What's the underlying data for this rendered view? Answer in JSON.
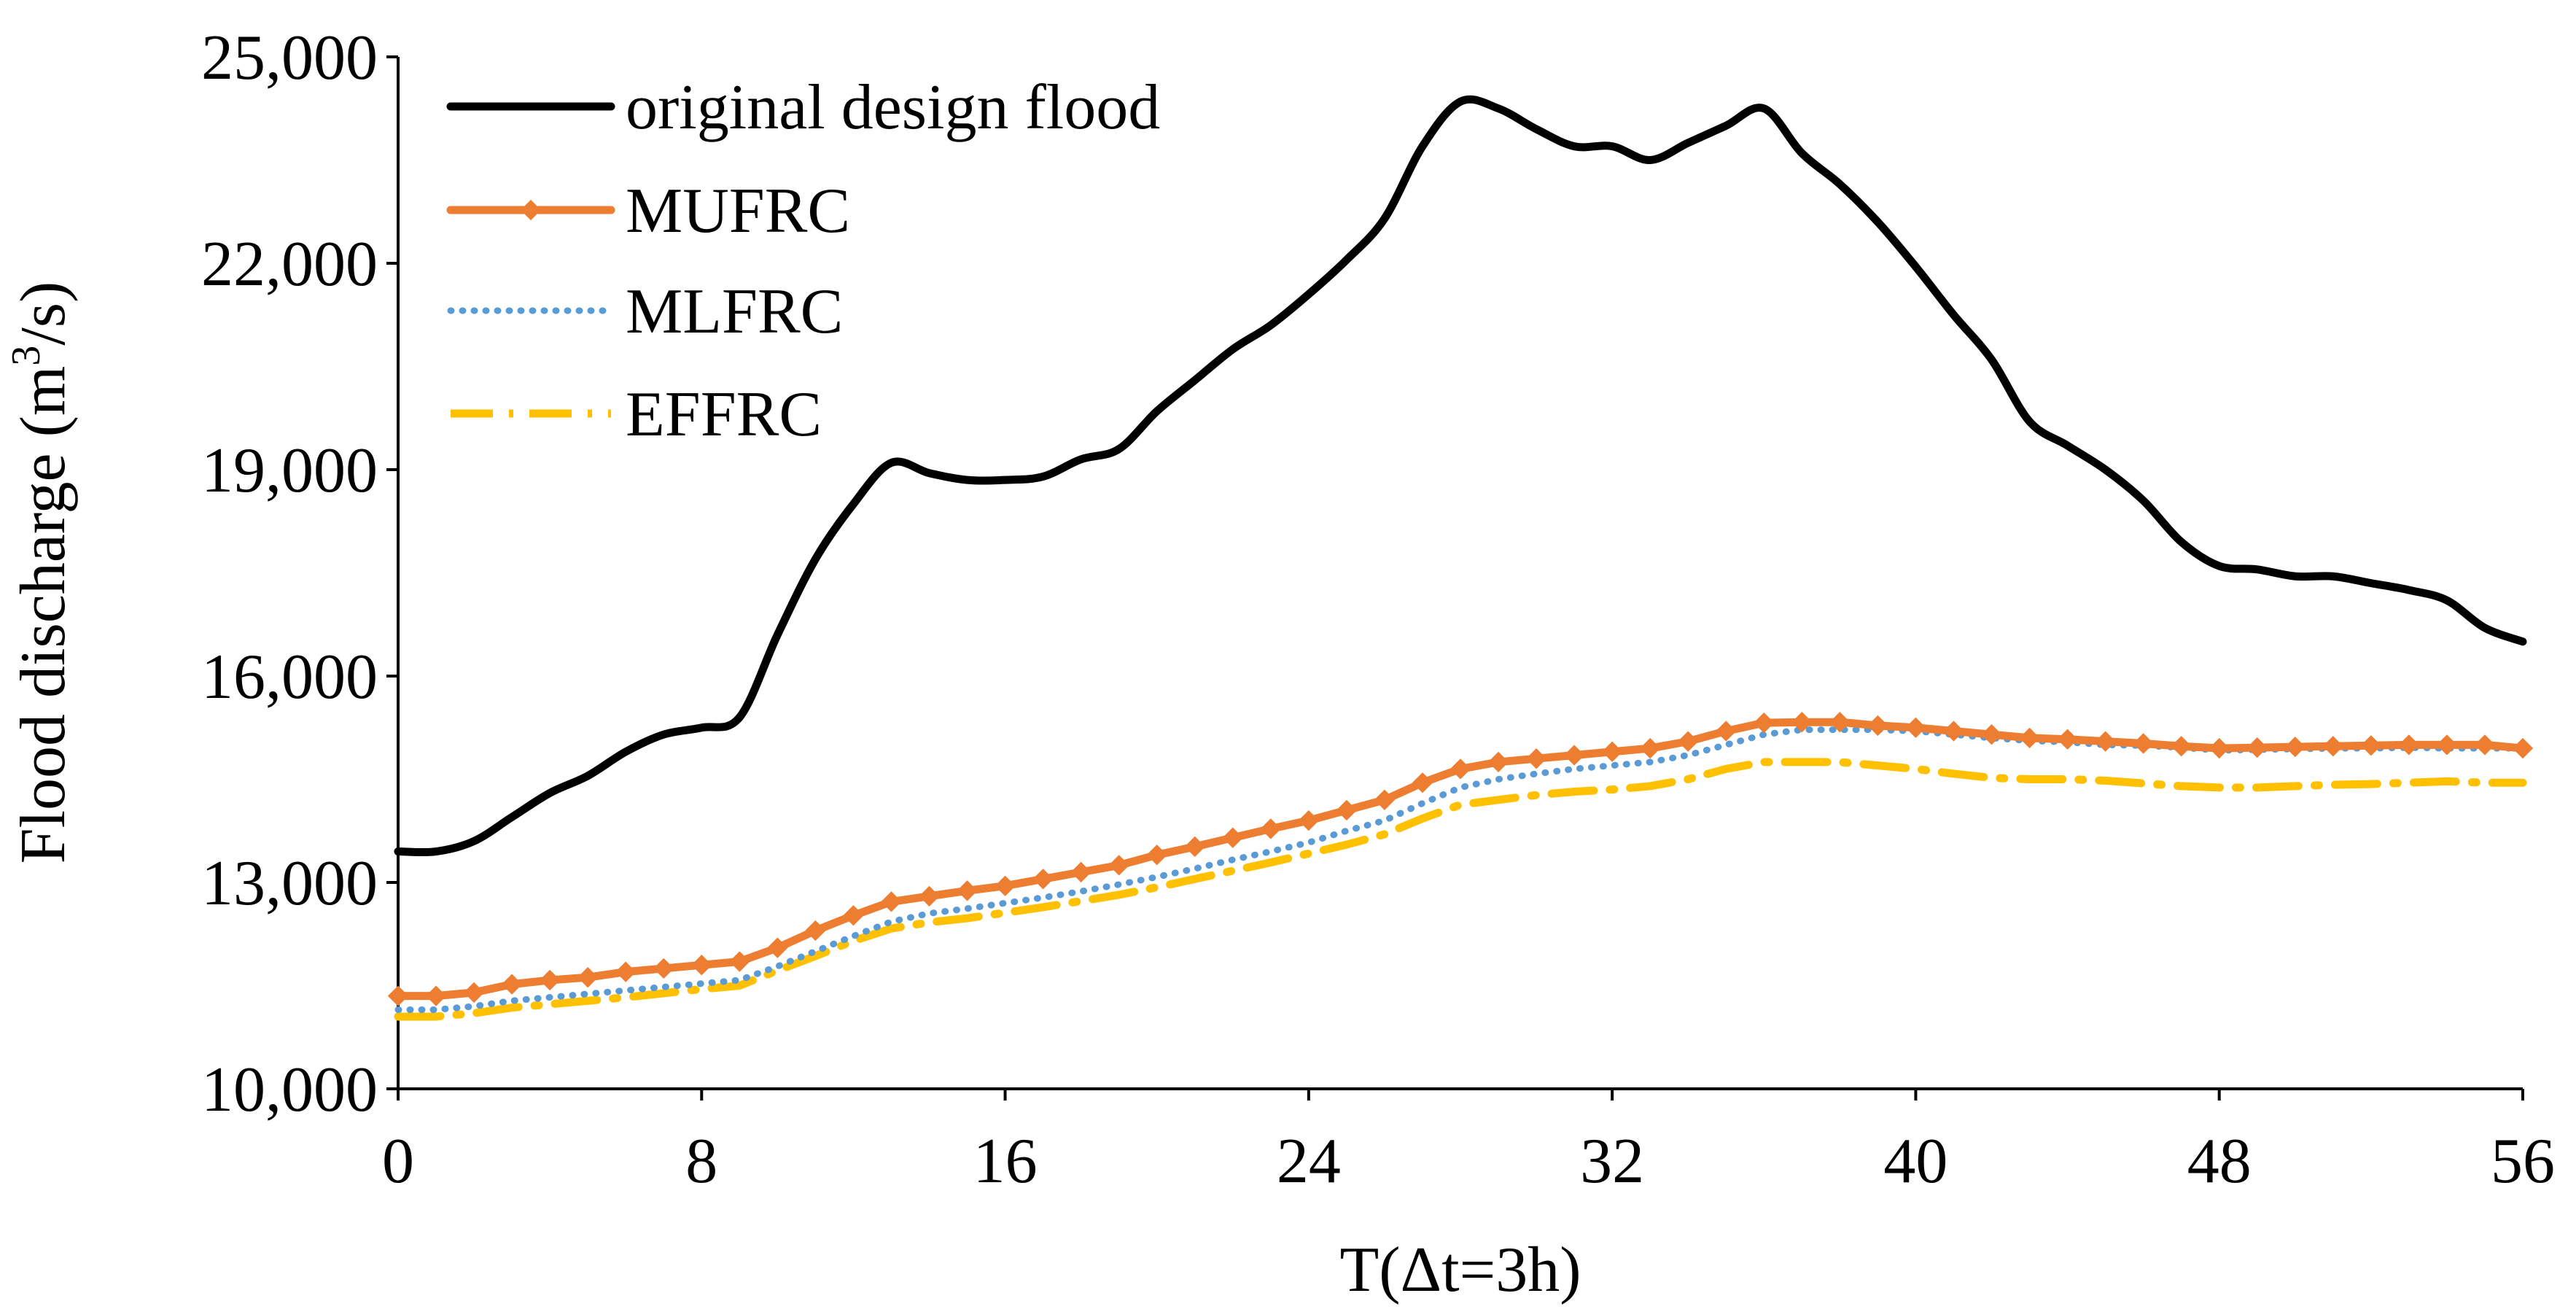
{
  "chart_data": {
    "type": "line",
    "title": "",
    "xlabel": "T(Δt=3h)",
    "ylabel_prefix": "Flood discharge (m",
    "ylabel_sup": "3",
    "ylabel_suffix": "/s)",
    "xlim": [
      0,
      56
    ],
    "ylim": [
      10000,
      25000
    ],
    "xticks": [
      0,
      8,
      16,
      24,
      32,
      40,
      48,
      56
    ],
    "yticks": [
      10000,
      13000,
      16000,
      19000,
      22000,
      25000
    ],
    "ytick_labels": [
      "10,000",
      "13,000",
      "16,000",
      "19,000",
      "22,000",
      "25,000"
    ],
    "grid": false,
    "legend_position": "top-left",
    "x": [
      0,
      1,
      2,
      3,
      4,
      5,
      6,
      7,
      8,
      9,
      10,
      11,
      12,
      13,
      14,
      15,
      16,
      17,
      18,
      19,
      20,
      21,
      22,
      23,
      24,
      25,
      26,
      27,
      28,
      29,
      30,
      31,
      32,
      33,
      34,
      35,
      36,
      37,
      38,
      39,
      40,
      41,
      42,
      43,
      44,
      45,
      46,
      47,
      48,
      49,
      50,
      51,
      52,
      53,
      54,
      55,
      56
    ],
    "series": [
      {
        "name": "original design flood",
        "color": "#000000",
        "style": "solid",
        "values": [
          13450,
          13450,
          13600,
          13950,
          14300,
          14550,
          14900,
          15150,
          15250,
          15400,
          16600,
          17700,
          18500,
          19100,
          18950,
          18850,
          18850,
          18900,
          19150,
          19300,
          19850,
          20300,
          20750,
          21100,
          21550,
          22050,
          22650,
          23700,
          24350,
          24250,
          23950,
          23700,
          23700,
          23500,
          23750,
          24000,
          24250,
          23600,
          23150,
          22600,
          21950,
          21250,
          20600,
          19700,
          19350,
          19000,
          18550,
          17950,
          17600,
          17550,
          17450,
          17450,
          17350,
          17250,
          17100,
          16700,
          16500
        ]
      },
      {
        "name": "MUFRC",
        "color": "#ED7D31",
        "style": "solid-marker",
        "values": [
          11350,
          11350,
          11400,
          11520,
          11580,
          11620,
          11700,
          11750,
          11800,
          11850,
          12050,
          12300,
          12520,
          12720,
          12800,
          12880,
          12950,
          13050,
          13150,
          13250,
          13400,
          13520,
          13650,
          13780,
          13900,
          14050,
          14200,
          14450,
          14650,
          14750,
          14800,
          14850,
          14900,
          14950,
          15050,
          15200,
          15320,
          15330,
          15330,
          15280,
          15250,
          15200,
          15150,
          15100,
          15080,
          15050,
          15020,
          14980,
          14950,
          14960,
          14970,
          14980,
          14990,
          15000,
          15000,
          15000,
          14950
        ]
      },
      {
        "name": "MLFRC",
        "color": "#5B9BD5",
        "style": "dotted",
        "values": [
          11150,
          11150,
          11200,
          11280,
          11330,
          11380,
          11430,
          11480,
          11530,
          11580,
          11780,
          12000,
          12220,
          12430,
          12550,
          12620,
          12700,
          12780,
          12870,
          12970,
          13080,
          13200,
          13330,
          13450,
          13580,
          13750,
          13900,
          14150,
          14380,
          14500,
          14580,
          14650,
          14700,
          14750,
          14850,
          15000,
          15150,
          15220,
          15220,
          15220,
          15200,
          15150,
          15100,
          15060,
          15040,
          15000,
          14990,
          14960,
          14920,
          14930,
          14940,
          14950,
          14950,
          14960,
          14950,
          14950,
          14950
        ]
      },
      {
        "name": "EFFRC",
        "color": "#FFC000",
        "style": "dash-dot",
        "values": [
          11050,
          11050,
          11100,
          11180,
          11230,
          11280,
          11330,
          11390,
          11450,
          11500,
          11720,
          11930,
          12150,
          12330,
          12420,
          12480,
          12560,
          12640,
          12730,
          12820,
          12930,
          13050,
          13170,
          13290,
          13420,
          13550,
          13700,
          13930,
          14130,
          14200,
          14270,
          14320,
          14350,
          14400,
          14500,
          14650,
          14750,
          14750,
          14750,
          14700,
          14650,
          14580,
          14520,
          14500,
          14500,
          14480,
          14440,
          14400,
          14380,
          14380,
          14400,
          14420,
          14430,
          14450,
          14470,
          14450,
          14450
        ]
      }
    ]
  }
}
